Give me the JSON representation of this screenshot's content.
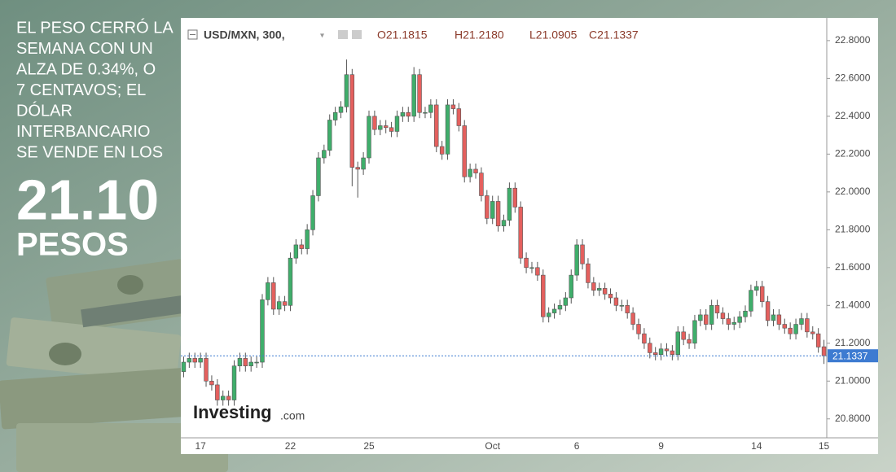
{
  "headline": {
    "lines": [
      "EL PESO CERRÓ LA",
      "SEMANA CON UN",
      "ALZA DE 0.34%, O",
      "7 CENTAVOS; EL",
      "DÓLAR",
      "INTERBANCARIO",
      "SE VENDE EN LOS"
    ],
    "number": "21.10",
    "unit": "PESOS"
  },
  "chart_data": {
    "type": "candlestick",
    "symbol": "USD/MXN, 300,",
    "ohlc_header": [
      "O21.1815",
      "H21.2180",
      "L21.0905",
      "C21.1337"
    ],
    "watermark": "Investing",
    "watermark_suffix": ".com",
    "up_color": "#3fae6b",
    "down_color": "#e4605e",
    "price_line_color": "#3d7bd1",
    "grid": false,
    "ylim": [
      20.7,
      22.92
    ],
    "yticks": [
      {
        "value": 20.8,
        "label": "20.8000"
      },
      {
        "value": 21.0,
        "label": "21.0000"
      },
      {
        "value": 21.2,
        "label": "21.2000"
      },
      {
        "value": 21.4,
        "label": "21.4000"
      },
      {
        "value": 21.6,
        "label": "21.6000"
      },
      {
        "value": 21.8,
        "label": "21.8000"
      },
      {
        "value": 22.0,
        "label": "22.0000"
      },
      {
        "value": 22.2,
        "label": "22.2000"
      },
      {
        "value": 22.4,
        "label": "22.4000"
      },
      {
        "value": 22.6,
        "label": "22.6000"
      },
      {
        "value": 22.8,
        "label": "22.8000"
      }
    ],
    "categories": [
      null,
      null,
      null,
      "17",
      null,
      null,
      null,
      null,
      null,
      null,
      null,
      null,
      null,
      null,
      null,
      null,
      null,
      null,
      null,
      "22",
      null,
      null,
      null,
      null,
      null,
      null,
      null,
      null,
      null,
      null,
      null,
      null,
      null,
      "25",
      null,
      null,
      null,
      null,
      null,
      null,
      null,
      null,
      null,
      null,
      null,
      null,
      null,
      null,
      null,
      null,
      null,
      null,
      null,
      null,
      null,
      "Oct",
      null,
      null,
      null,
      null,
      null,
      null,
      null,
      null,
      null,
      null,
      null,
      null,
      null,
      null,
      "6",
      null,
      null,
      null,
      null,
      null,
      null,
      null,
      null,
      null,
      null,
      null,
      null,
      null,
      null,
      "9",
      null,
      null,
      null,
      null,
      null,
      null,
      null,
      null,
      null,
      null,
      null,
      null,
      null,
      null,
      null,
      null,
      "14",
      null,
      null,
      null,
      null,
      null,
      null,
      null,
      null,
      null,
      null,
      null,
      "15"
    ],
    "series": [
      {
        "open": [
          21.05,
          21.1,
          21.12,
          21.1,
          21.12,
          21.0,
          20.98,
          20.9,
          20.92,
          20.9,
          21.08,
          21.12,
          21.08,
          21.1,
          21.1,
          21.43,
          21.52,
          21.38,
          21.42,
          21.4,
          21.65,
          21.72,
          21.7,
          21.8,
          21.98,
          22.18,
          22.22,
          22.38,
          22.42,
          22.45,
          22.62,
          22.13,
          22.12,
          22.18,
          22.4,
          22.33,
          22.35,
          22.34,
          22.32,
          22.4,
          22.42,
          22.4,
          22.62,
          22.42,
          22.42,
          22.46,
          22.24,
          22.2,
          22.46,
          22.44,
          22.35,
          22.08,
          22.12,
          22.1,
          21.98,
          21.86,
          21.95,
          21.82,
          21.85,
          22.02,
          21.92,
          21.65,
          21.6,
          21.6,
          21.56,
          21.34,
          21.36,
          21.38,
          21.4,
          21.44,
          21.56,
          21.72,
          21.62,
          21.52,
          21.48,
          21.49,
          21.46,
          21.44,
          21.4,
          21.4,
          21.36,
          21.3,
          21.25,
          21.2,
          21.15,
          21.14,
          21.17,
          21.16,
          21.14,
          21.26,
          21.22,
          21.2,
          21.32,
          21.35,
          21.3,
          21.4,
          21.36,
          21.33,
          21.3,
          21.31,
          21.34,
          21.37,
          21.48,
          21.5,
          21.42,
          21.32,
          21.35,
          21.3,
          21.28,
          21.25,
          21.3,
          21.33,
          21.26,
          21.25,
          21.1815
        ],
        "high": [
          21.13,
          21.15,
          21.15,
          21.15,
          21.15,
          21.03,
          21.01,
          20.95,
          20.95,
          21.11,
          21.15,
          21.15,
          21.13,
          21.13,
          21.46,
          21.55,
          21.55,
          21.45,
          21.45,
          21.68,
          21.75,
          21.75,
          21.83,
          22.01,
          22.21,
          22.25,
          22.41,
          22.45,
          22.48,
          22.7,
          22.65,
          22.16,
          22.21,
          22.43,
          22.43,
          22.38,
          22.38,
          22.37,
          22.43,
          22.45,
          22.45,
          22.66,
          22.65,
          22.45,
          22.49,
          22.49,
          22.27,
          22.49,
          22.49,
          22.47,
          22.38,
          22.15,
          22.15,
          22.13,
          22.01,
          21.98,
          21.98,
          21.88,
          22.05,
          22.05,
          21.95,
          21.68,
          21.63,
          21.63,
          21.59,
          21.39,
          21.41,
          21.43,
          21.47,
          21.59,
          21.75,
          21.75,
          21.65,
          21.55,
          21.52,
          21.52,
          21.49,
          21.47,
          21.43,
          21.43,
          21.39,
          21.33,
          21.28,
          21.23,
          21.18,
          21.2,
          21.2,
          21.19,
          21.29,
          21.29,
          21.25,
          21.35,
          21.38,
          21.38,
          21.43,
          21.43,
          21.39,
          21.36,
          21.34,
          21.37,
          21.4,
          21.51,
          21.53,
          21.53,
          21.45,
          21.38,
          21.38,
          21.33,
          21.31,
          21.33,
          21.36,
          21.36,
          21.29,
          21.28,
          21.218
        ],
        "low": [
          21.02,
          21.07,
          21.07,
          21.07,
          20.97,
          20.95,
          20.87,
          20.87,
          20.87,
          20.87,
          21.05,
          21.05,
          21.05,
          21.07,
          21.07,
          21.4,
          21.35,
          21.35,
          21.37,
          21.37,
          21.62,
          21.67,
          21.67,
          21.77,
          21.95,
          22.15,
          22.19,
          22.35,
          22.39,
          22.42,
          22.03,
          21.97,
          22.09,
          22.15,
          22.3,
          22.3,
          22.31,
          22.29,
          22.29,
          22.37,
          22.37,
          22.37,
          22.39,
          22.39,
          22.39,
          22.21,
          22.17,
          22.17,
          22.41,
          22.32,
          22.05,
          22.05,
          22.07,
          21.95,
          21.83,
          21.83,
          21.79,
          21.79,
          21.82,
          21.89,
          21.62,
          21.57,
          21.57,
          21.53,
          21.31,
          21.31,
          21.33,
          21.35,
          21.37,
          21.41,
          21.53,
          21.59,
          21.49,
          21.45,
          21.45,
          21.43,
          21.41,
          21.37,
          21.37,
          21.33,
          21.27,
          21.22,
          21.17,
          21.12,
          21.11,
          21.11,
          21.13,
          21.11,
          21.11,
          21.19,
          21.17,
          21.17,
          21.29,
          21.27,
          21.27,
          21.33,
          21.3,
          21.27,
          21.27,
          21.28,
          21.31,
          21.34,
          21.45,
          21.39,
          21.29,
          21.29,
          21.27,
          21.25,
          21.22,
          21.22,
          21.27,
          21.23,
          21.22,
          21.15,
          21.0905
        ],
        "close": [
          21.1,
          21.12,
          21.1,
          21.12,
          21.0,
          20.98,
          20.9,
          20.92,
          20.9,
          21.08,
          21.12,
          21.08,
          21.1,
          21.1,
          21.43,
          21.52,
          21.38,
          21.42,
          21.4,
          21.65,
          21.72,
          21.7,
          21.8,
          21.98,
          22.18,
          22.22,
          22.38,
          22.42,
          22.45,
          22.62,
          22.13,
          22.12,
          22.18,
          22.4,
          22.33,
          22.35,
          22.34,
          22.32,
          22.4,
          22.42,
          22.4,
          22.62,
          22.42,
          22.42,
          22.46,
          22.24,
          22.2,
          22.46,
          22.44,
          22.35,
          22.08,
          22.12,
          22.1,
          21.98,
          21.86,
          21.95,
          21.82,
          21.85,
          22.02,
          21.92,
          21.65,
          21.6,
          21.6,
          21.56,
          21.34,
          21.36,
          21.38,
          21.4,
          21.44,
          21.56,
          21.72,
          21.62,
          21.52,
          21.48,
          21.49,
          21.46,
          21.44,
          21.4,
          21.4,
          21.36,
          21.3,
          21.25,
          21.2,
          21.15,
          21.14,
          21.17,
          21.16,
          21.14,
          21.26,
          21.22,
          21.2,
          21.32,
          21.35,
          21.3,
          21.4,
          21.36,
          21.33,
          21.3,
          21.31,
          21.34,
          21.37,
          21.48,
          21.5,
          21.42,
          21.32,
          21.35,
          21.3,
          21.28,
          21.25,
          21.3,
          21.33,
          21.26,
          21.25,
          21.18,
          21.1337
        ]
      }
    ]
  }
}
